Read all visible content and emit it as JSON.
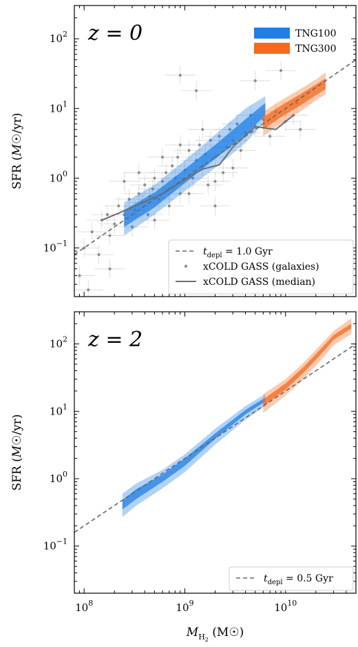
{
  "chart_data": [
    {
      "type": "area",
      "panel_label": "z = 0",
      "xlabel": "M_H2 (M☉)",
      "ylabel": "SFR (M☉/yr)",
      "xscale": "log",
      "yscale": "log",
      "xlim": [
        80000000,
        50000000000
      ],
      "ylim": [
        0.02,
        300
      ],
      "x_ticks": [
        {
          "value": 100000000,
          "base": "10",
          "exp": "8"
        },
        {
          "value": 1000000000,
          "base": "10",
          "exp": "9"
        },
        {
          "value": 10000000000,
          "base": "10",
          "exp": "10"
        }
      ],
      "y_ticks": [
        {
          "value": 0.1,
          "base": "10",
          "exp": "−1"
        },
        {
          "value": 1,
          "base": "10",
          "exp": "0"
        },
        {
          "value": 10,
          "base": "10",
          "exp": "1"
        },
        {
          "value": 100,
          "base": "10",
          "exp": "2"
        }
      ],
      "show_x_tick_labels": false,
      "bands": [
        {
          "name": "TNG100",
          "color": "#1f7fe6",
          "x": [
            250000000,
            500000000,
            1000000000,
            2000000000,
            4000000000,
            6300000000
          ],
          "y_low": [
            0.15,
            0.3,
            0.65,
            1.4,
            3.2,
            6.5
          ],
          "y_high": [
            0.45,
            0.8,
            1.8,
            4.2,
            10,
            15
          ],
          "inner_low": [
            0.2,
            0.38,
            0.85,
            1.9,
            4.2,
            8
          ],
          "inner_high": [
            0.35,
            0.62,
            1.35,
            3,
            7,
            12
          ]
        },
        {
          "name": "TNG300",
          "color": "#f46a1e",
          "x": [
            6000000000,
            9000000000,
            14000000000,
            20000000000,
            25000000000
          ],
          "y_low": [
            4,
            6,
            9,
            13,
            16
          ],
          "y_high": [
            9,
            13,
            19,
            26,
            33
          ],
          "inner_low": [
            5,
            7.5,
            11,
            15.5,
            19
          ],
          "inner_high": [
            7.5,
            11,
            16,
            22,
            27
          ]
        }
      ],
      "depletion_line": {
        "label_prefix": "t",
        "label_sub": "depl",
        "label_rest": " = 1.0 Gyr",
        "tdepl_gyr": 1.0
      },
      "observed_points_label": "xCOLD GASS (galaxies)",
      "observed_points": [
        [
          90000000,
          0.04
        ],
        [
          100000000,
          0.1
        ],
        [
          120000000,
          0.17
        ],
        [
          140000000,
          0.08
        ],
        [
          150000000,
          0.25
        ],
        [
          170000000,
          0.3
        ],
        [
          180000000,
          0.15
        ],
        [
          200000000,
          0.22
        ],
        [
          220000000,
          0.4
        ],
        [
          250000000,
          0.3
        ],
        [
          280000000,
          0.5
        ],
        [
          300000000,
          0.2
        ],
        [
          320000000,
          0.35
        ],
        [
          350000000,
          0.6
        ],
        [
          380000000,
          0.45
        ],
        [
          400000000,
          0.8
        ],
        [
          430000000,
          0.3
        ],
        [
          450000000,
          0.55
        ],
        [
          480000000,
          0.7
        ],
        [
          500000000,
          1.0
        ],
        [
          550000000,
          0.5
        ],
        [
          600000000,
          0.9
        ],
        [
          650000000,
          1.2
        ],
        [
          700000000,
          0.7
        ],
        [
          750000000,
          1.5
        ],
        [
          800000000,
          1.0
        ],
        [
          850000000,
          2.0
        ],
        [
          900000000,
          0.6
        ],
        [
          1000000000,
          1.3
        ],
        [
          1100000000,
          2.5
        ],
        [
          1200000000,
          1.0
        ],
        [
          1300000000,
          1.8
        ],
        [
          1400000000,
          3.0
        ],
        [
          1500000000,
          1.5
        ],
        [
          1600000000,
          2.2
        ],
        [
          1700000000,
          0.8
        ],
        [
          1800000000,
          3.5
        ],
        [
          2000000000,
          2.0
        ],
        [
          2200000000,
          4.0
        ],
        [
          2400000000,
          1.2
        ],
        [
          2600000000,
          2.8
        ],
        [
          2800000000,
          5.0
        ],
        [
          3000000000,
          3.5
        ],
        [
          3300000000,
          6.0
        ],
        [
          3600000000,
          2.5
        ],
        [
          4000000000,
          4.5
        ],
        [
          4500000000,
          8.0
        ],
        [
          5000000000,
          5.5
        ],
        [
          6000000000,
          7.0
        ],
        [
          7000000000,
          4.0
        ],
        [
          8000000000,
          9.0
        ],
        [
          10000000000,
          6.5
        ],
        [
          12000000000,
          8.0
        ],
        [
          14000000000,
          5.0
        ],
        [
          500000000,
          0.25
        ],
        [
          700000000,
          0.4
        ],
        [
          1100000000,
          0.6
        ],
        [
          2000000000,
          0.9
        ],
        [
          3000000000,
          1.4
        ],
        [
          250000000,
          0.9
        ],
        [
          350000000,
          1.2
        ],
        [
          600000000,
          2.0
        ],
        [
          900000000,
          3.0
        ],
        [
          1500000000,
          5.0
        ],
        [
          900000000,
          30
        ],
        [
          1300000000,
          18
        ],
        [
          5000000000,
          25
        ],
        [
          9000000000,
          35
        ],
        [
          110000000,
          0.025
        ],
        [
          180000000,
          0.05
        ],
        [
          13000000000,
          12
        ],
        [
          2000000000,
          0.4
        ]
      ],
      "median_label": "xCOLD GASS (median)",
      "median": {
        "x": [
          150000000,
          300000000,
          600000000,
          1000000000,
          1500000000,
          2200000000,
          3000000000,
          5000000000,
          8000000000,
          12000000000
        ],
        "y": [
          0.25,
          0.38,
          0.6,
          0.95,
          1.35,
          1.55,
          2.8,
          5.5,
          5.0,
          8.0
        ]
      },
      "legend_bands_position": "top-right",
      "legend_lines_position": "bottom-right"
    },
    {
      "type": "area",
      "panel_label": "z = 2",
      "xlabel": "M_H2 (M☉)",
      "ylabel": "SFR (M☉/yr)",
      "xscale": "log",
      "yscale": "log",
      "xlim": [
        80000000,
        50000000000
      ],
      "ylim": [
        0.02,
        300
      ],
      "x_ticks": [
        {
          "value": 100000000,
          "base": "10",
          "exp": "8"
        },
        {
          "value": 1000000000,
          "base": "10",
          "exp": "9"
        },
        {
          "value": 10000000000,
          "base": "10",
          "exp": "10"
        }
      ],
      "y_ticks": [
        {
          "value": 0.1,
          "base": "10",
          "exp": "−1"
        },
        {
          "value": 1,
          "base": "10",
          "exp": "0"
        },
        {
          "value": 10,
          "base": "10",
          "exp": "1"
        },
        {
          "value": 100,
          "base": "10",
          "exp": "2"
        }
      ],
      "show_x_tick_labels": true,
      "bands": [
        {
          "name": "TNG100",
          "color": "#1f7fe6",
          "x": [
            240000000,
            330000000,
            600000000,
            1000000000,
            2000000000,
            4000000000,
            6300000000
          ],
          "y_low": [
            0.27,
            0.4,
            0.72,
            1.25,
            3.2,
            7.5,
            12
          ],
          "y_high": [
            0.6,
            0.85,
            1.35,
            2.3,
            5.5,
            12,
            18
          ],
          "inner_low": [
            0.35,
            0.5,
            0.9,
            1.55,
            3.9,
            9,
            14
          ],
          "inner_high": [
            0.48,
            0.7,
            1.15,
            2.0,
            4.7,
            10.5,
            16
          ]
        },
        {
          "name": "TNG300",
          "color": "#f46a1e",
          "x": [
            6000000000,
            10000000000,
            15000000000,
            22000000000,
            30000000000,
            45000000000
          ],
          "y_low": [
            9.5,
            17,
            30,
            55,
            95,
            140
          ],
          "y_high": [
            18,
            30,
            52,
            95,
            155,
            240
          ],
          "inner_low": [
            12,
            21,
            37,
            68,
            115,
            170
          ],
          "inner_high": [
            15,
            26,
            45,
            82,
            135,
            200
          ]
        }
      ],
      "depletion_line": {
        "label_prefix": "t",
        "label_sub": "depl",
        "label_rest": " = 0.5 Gyr",
        "tdepl_gyr": 0.5
      },
      "legend_lines_position": "bottom-right"
    }
  ]
}
